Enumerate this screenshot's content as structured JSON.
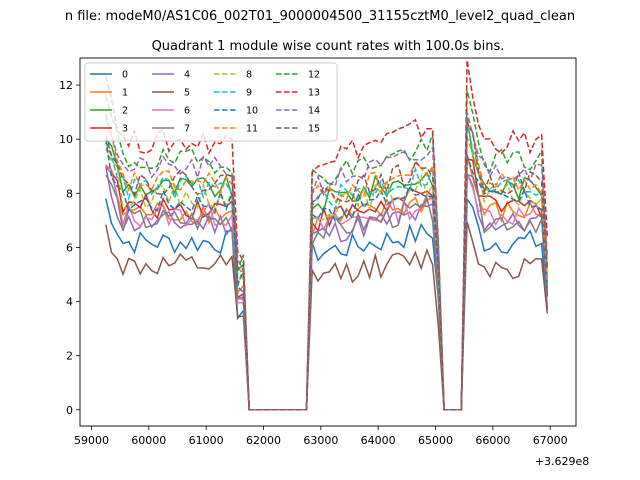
{
  "chart_data": {
    "type": "line",
    "suptitle": "n file: modeM0/AS1C06_002T01_9000004500_31155cztM0_level2_quad_clean",
    "title": "Quadrant 1 module wise count rates with 100.0s bins.",
    "xlabel": "",
    "ylabel": "",
    "x_offset_label": "+3.629e8",
    "xlim": [
      58800,
      67450
    ],
    "ylim": [
      -0.6,
      13.0
    ],
    "xticks": [
      59000,
      60000,
      61000,
      62000,
      63000,
      64000,
      65000,
      66000,
      67000
    ],
    "yticks": [
      0,
      2,
      4,
      6,
      8,
      10,
      12
    ],
    "legend_position": "top-left",
    "segments": [
      [
        59250,
        61650
      ],
      [
        62850,
        65100
      ],
      [
        65520,
        67000
      ]
    ],
    "series": [
      {
        "name": "0",
        "color": "#1f77b4",
        "dash": "solid",
        "level": 6.2
      },
      {
        "name": "1",
        "color": "#ff7f0e",
        "dash": "solid",
        "level": 7.3
      },
      {
        "name": "2",
        "color": "#2ca02c",
        "dash": "solid",
        "level": 8.2
      },
      {
        "name": "3",
        "color": "#d62728",
        "dash": "solid",
        "level": 7.5
      },
      {
        "name": "4",
        "color": "#9467bd",
        "dash": "solid",
        "level": 6.9
      },
      {
        "name": "5",
        "color": "#8c564b",
        "dash": "solid",
        "level": 5.3
      },
      {
        "name": "6",
        "color": "#e377c2",
        "dash": "solid",
        "level": 7.2
      },
      {
        "name": "7",
        "color": "#7f7f7f",
        "dash": "solid",
        "level": 7.0
      },
      {
        "name": "8",
        "color": "#bcbd22",
        "dash": "dashed",
        "level": 7.9
      },
      {
        "name": "9",
        "color": "#17becf",
        "dash": "dashed",
        "level": 8.2
      },
      {
        "name": "10",
        "color": "#1f77b4",
        "dash": "dashed",
        "level": 7.7
      },
      {
        "name": "11",
        "color": "#ff7f0e",
        "dash": "dashed",
        "level": 8.4
      },
      {
        "name": "12",
        "color": "#2ca02c",
        "dash": "dashed",
        "level": 9.2
      },
      {
        "name": "13",
        "color": "#d62728",
        "dash": "dashed",
        "level": 9.9
      },
      {
        "name": "14",
        "color": "#9467bd",
        "dash": "dashed",
        "level": 8.9
      },
      {
        "name": "15",
        "color": "#8c564b",
        "dash": "dashed",
        "level": 8.4
      }
    ]
  }
}
